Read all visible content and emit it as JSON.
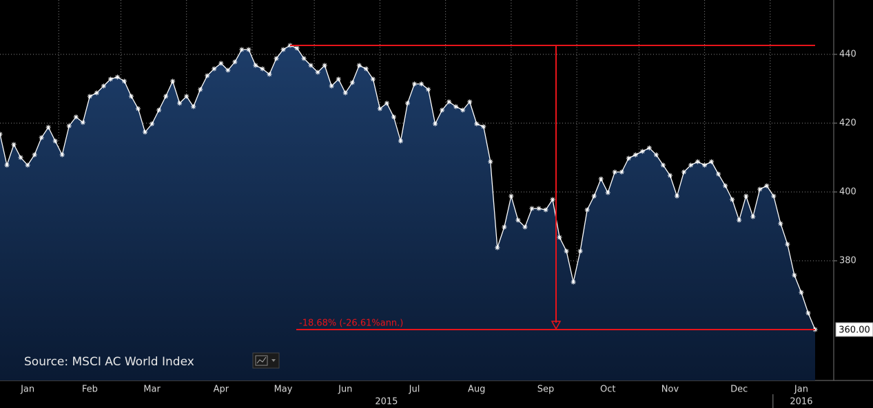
{
  "chart_data": {
    "type": "area",
    "categories": [
      null,
      null,
      null,
      null,
      "Jan",
      null,
      null,
      null,
      null,
      null,
      null,
      null,
      null,
      "Feb",
      null,
      null,
      null,
      null,
      null,
      null,
      null,
      null,
      "Mar",
      null,
      null,
      null,
      null,
      null,
      null,
      null,
      null,
      null,
      "Apr",
      null,
      null,
      null,
      null,
      null,
      null,
      null,
      null,
      "May",
      null,
      null,
      null,
      null,
      null,
      null,
      null,
      null,
      "Jun",
      null,
      null,
      null,
      null,
      null,
      null,
      null,
      null,
      null,
      "Jul",
      null,
      null,
      null,
      null,
      null,
      null,
      null,
      null,
      "Aug",
      null,
      null,
      null,
      null,
      null,
      null,
      null,
      null,
      null,
      "Sep",
      null,
      null,
      null,
      null,
      null,
      null,
      null,
      null,
      "Oct",
      null,
      null,
      null,
      null,
      null,
      null,
      null,
      null,
      "Nov",
      null,
      null,
      null,
      null,
      null,
      null,
      null,
      null,
      null,
      "Dec",
      null,
      null,
      null,
      null,
      null,
      null,
      null,
      null,
      "Jan",
      null,
      null
    ],
    "values": [
      416.8,
      407.8,
      413.8,
      410,
      407.8,
      410.8,
      415.8,
      418.8,
      414.8,
      410.8,
      419.2,
      421.8,
      420.2,
      427.8,
      428.8,
      430.8,
      432.8,
      433.4,
      432.2,
      427.8,
      424.2,
      417.4,
      419.8,
      423.8,
      427.8,
      432.2,
      425.8,
      427.8,
      424.8,
      429.8,
      433.8,
      435.8,
      437.4,
      435.4,
      437.8,
      441.4,
      441.4,
      436.8,
      435.8,
      434.2,
      438.8,
      441.4,
      442.6,
      441.8,
      438.8,
      436.8,
      434.8,
      436.8,
      430.8,
      432.8,
      428.8,
      431.8,
      436.8,
      435.8,
      432.8,
      424.2,
      425.8,
      421.8,
      414.8,
      425.8,
      431.4,
      431.4,
      429.8,
      419.8,
      423.8,
      426.2,
      424.8,
      423.8,
      426.2,
      419.8,
      419,
      408.8,
      383.8,
      389.8,
      398.8,
      391.8,
      389.8,
      395.2,
      395.2,
      394.8,
      397.8,
      386.8,
      382.8,
      373.8,
      382.8,
      394.8,
      398.8,
      403.8,
      399.8,
      405.8,
      405.8,
      409.8,
      410.8,
      411.8,
      412.8,
      410.8,
      407.8,
      404.8,
      398.8,
      405.8,
      407.8,
      408.8,
      407.8,
      408.8,
      405.2,
      401.8,
      397.8,
      391.8,
      398.8,
      392.8,
      400.8,
      401.8,
      398.8,
      390.8,
      384.8,
      375.8,
      370.8,
      364.8,
      360
    ],
    "x_groups": [
      "2015",
      "2016"
    ],
    "color": "#ffffff",
    "ylim": [
      345.2,
      455.8
    ],
    "yticks": [
      380,
      400,
      420,
      440
    ],
    "grid": true,
    "last_label": {
      "value": 360,
      "label": "360.00"
    },
    "annotation": {
      "text": "-18.68% (-26.61%ann.)",
      "high": 442.6,
      "low": 360
    },
    "source": "Source: MSCI AC World Index"
  }
}
